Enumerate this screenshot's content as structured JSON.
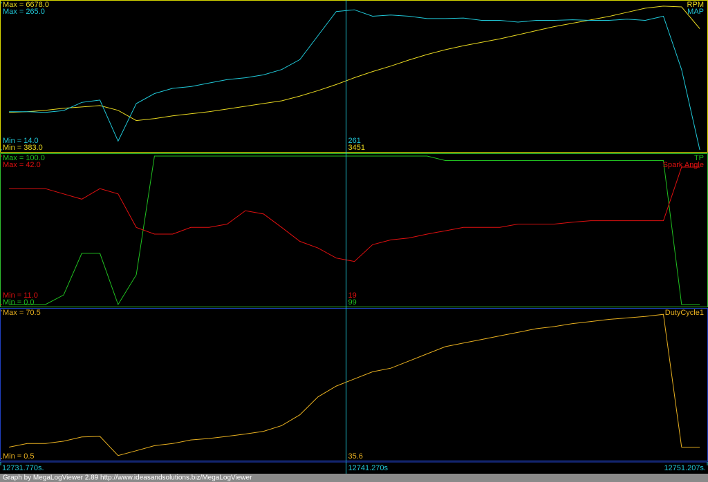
{
  "chart_data": [
    {
      "type": "line",
      "frame_color": "#d8d800",
      "xlim": [
        12731.77,
        12751.207
      ],
      "x": [
        12732,
        12732.5,
        12733,
        12733.5,
        12734,
        12734.5,
        12735,
        12735.5,
        12736,
        12736.5,
        12737,
        12737.5,
        12738,
        12738.5,
        12739,
        12739.5,
        12740,
        12740.5,
        12741,
        12741.5,
        12742,
        12742.5,
        12743,
        12743.5,
        12744,
        12744.5,
        12745,
        12745.5,
        12746,
        12746.5,
        12747,
        12747.5,
        12748,
        12748.5,
        12749,
        12749.5,
        12750,
        12750.5,
        12751
      ],
      "series": [
        {
          "name": "RPM",
          "color": "#e8d820",
          "ylim": [
            383,
            6678
          ],
          "yticks": [
            {
              "value": 383,
              "label": "Min = 383.0"
            },
            {
              "value": 6678,
              "label": "Max = 6678.0"
            }
          ],
          "cursor_value": 3451,
          "values": [
            1986,
            2015,
            2073,
            2161,
            2219,
            2277,
            2073,
            1636,
            1723,
            1840,
            1927,
            2015,
            2131,
            2248,
            2365,
            2481,
            2685,
            2918,
            3180,
            3472,
            3734,
            3967,
            4229,
            4463,
            4667,
            4841,
            4987,
            5133,
            5308,
            5483,
            5657,
            5803,
            5949,
            6094,
            6269,
            6444,
            6532,
            6502,
            5570
          ]
        },
        {
          "name": "MAP",
          "color": "#20c8d8",
          "ylim": [
            14,
            265
          ],
          "yticks": [
            {
              "value": 14,
              "label": "Min = 14.0"
            },
            {
              "value": 265,
              "label": "Max = 265.0"
            }
          ],
          "cursor_value": 261,
          "values": [
            79,
            79,
            78,
            81,
            95,
            99,
            29,
            93,
            110,
            119,
            122,
            128,
            134,
            137,
            142,
            151,
            168,
            209,
            250,
            253,
            242,
            244,
            242,
            238,
            238,
            239,
            235,
            235,
            232,
            235,
            235,
            236,
            235,
            235,
            237,
            235,
            242,
            151,
            14
          ]
        }
      ]
    },
    {
      "type": "line",
      "frame_color": "#30c030",
      "xlim": [
        12731.77,
        12751.207
      ],
      "x": [
        12732,
        12732.5,
        12733,
        12733.5,
        12734,
        12734.5,
        12735,
        12735.5,
        12736,
        12736.5,
        12737,
        12737.5,
        12738,
        12738.5,
        12739,
        12739.5,
        12740,
        12740.5,
        12741,
        12741.5,
        12742,
        12742.5,
        12743,
        12743.5,
        12744,
        12744.5,
        12745,
        12745.5,
        12746,
        12746.5,
        12747,
        12747.5,
        12748,
        12748.5,
        12749,
        12749.5,
        12750,
        12750.5,
        12751
      ],
      "series": [
        {
          "name": "TP",
          "color": "#20c020",
          "ylim": [
            0,
            100
          ],
          "yticks": [
            {
              "value": 0,
              "label": "Min = 0.0"
            },
            {
              "value": 100,
              "label": "Max = 100.0"
            }
          ],
          "cursor_value": 99,
          "values": [
            0,
            0,
            0,
            6.4,
            34.5,
            34.5,
            0,
            20,
            100,
            100,
            100,
            100,
            100,
            100,
            100,
            100,
            100,
            100,
            100,
            100,
            100,
            100,
            100,
            100,
            97,
            97,
            97,
            97,
            97,
            97,
            97,
            97,
            97,
            97,
            97,
            97,
            97,
            0,
            0
          ]
        },
        {
          "name": "Spark Angle",
          "color": "#e01010",
          "ylim": [
            11,
            42
          ],
          "yticks": [
            {
              "value": 11,
              "label": "Min = 11.0"
            },
            {
              "value": 42,
              "label": "Max = 42.0"
            }
          ],
          "cursor_value": 19,
          "values": [
            35.2,
            35.2,
            35.2,
            34.1,
            33.0,
            35.2,
            34.1,
            27.1,
            25.7,
            25.7,
            27.1,
            27.1,
            27.8,
            30.6,
            29.9,
            27.1,
            24.2,
            22.8,
            20.7,
            20.0,
            23.5,
            24.5,
            24.9,
            25.7,
            26.4,
            27.1,
            27.1,
            27.1,
            27.8,
            27.8,
            27.8,
            28.2,
            28.5,
            28.5,
            28.5,
            28.5,
            28.5,
            39.7,
            39.7
          ]
        }
      ]
    },
    {
      "type": "line",
      "frame_color": "#2040c0",
      "xlim": [
        12731.77,
        12751.207
      ],
      "xticks": [
        {
          "value": 12731.77,
          "label": "12731.770s."
        },
        {
          "value": 12741.27,
          "label": "12741.270s"
        },
        {
          "value": 12751.207,
          "label": "12751.207s."
        }
      ],
      "cursor_x": 12741.27,
      "x": [
        12732,
        12732.5,
        12733,
        12733.5,
        12734,
        12734.5,
        12735,
        12735.5,
        12736,
        12736.5,
        12737,
        12737.5,
        12738,
        12738.5,
        12739,
        12739.5,
        12740,
        12740.5,
        12741,
        12741.5,
        12742,
        12742.5,
        12743,
        12743.5,
        12744,
        12744.5,
        12745,
        12745.5,
        12746,
        12746.5,
        12747,
        12747.5,
        12748,
        12748.5,
        12749,
        12749.5,
        12750,
        12750.5,
        12751
      ],
      "series": [
        {
          "name": "DutyCycle1",
          "color": "#e8b020",
          "ylim": [
            0.5,
            70.5
          ],
          "yticks": [
            {
              "value": 0.5,
              "label": "Min = 0.5"
            },
            {
              "value": 70.5,
              "label": "Max = 70.5"
            }
          ],
          "cursor_value": 35.6,
          "values": [
            5.9,
            7.6,
            7.6,
            8.7,
            10.7,
            11.0,
            1.9,
            4.2,
            6.6,
            7.6,
            9.3,
            10.0,
            11.0,
            12.1,
            13.4,
            16.1,
            21.2,
            29.7,
            34.8,
            38.2,
            41.6,
            43.3,
            46.7,
            50.1,
            53.5,
            55.2,
            56.9,
            58.6,
            60.3,
            62.0,
            63.0,
            64.4,
            65.4,
            66.4,
            67.1,
            67.8,
            68.8,
            5.9,
            5.9
          ]
        }
      ]
    }
  ],
  "footer": "Graph by MegaLogViewer 2.89 http://www.ideasandsolutions.biz/MegaLogViewer"
}
